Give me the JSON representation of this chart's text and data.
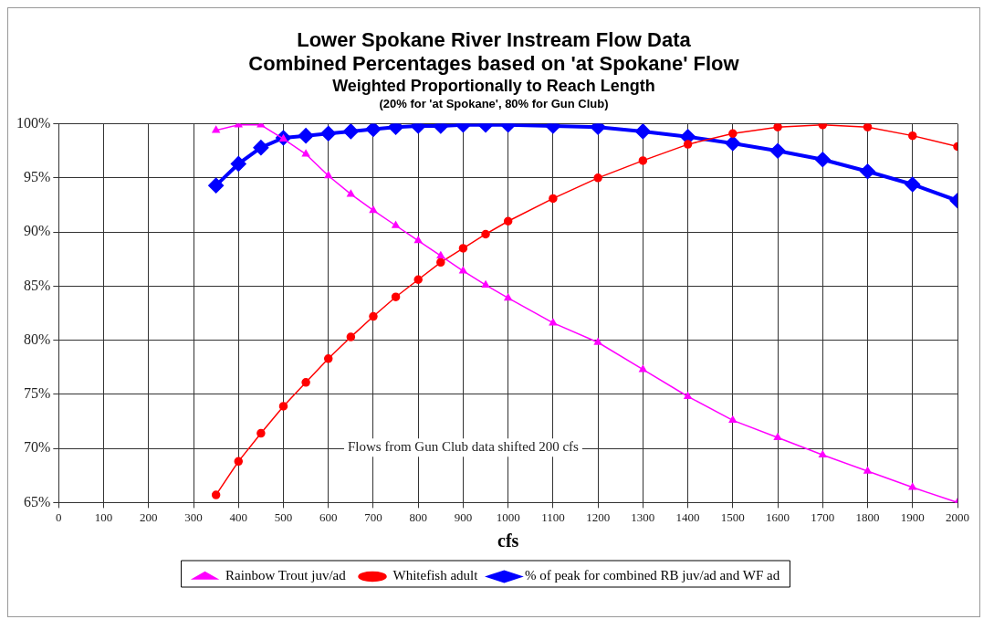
{
  "chart_data": {
    "type": "line",
    "title": "Lower Spokane River Instream Flow Data",
    "subtitle": "Combined Percentages based on 'at Spokane' Flow",
    "annotations": [
      "Weighted Proportionally to Reach Length",
      "(20% for 'at Spokane', 80% for Gun Club)",
      "Flows from Gun Club data shifted 200 cfs"
    ],
    "xlabel": "cfs",
    "x": [
      350,
      400,
      450,
      500,
      550,
      600,
      650,
      700,
      750,
      800,
      850,
      900,
      950,
      1000,
      1100,
      1200,
      1300,
      1400,
      1500,
      1600,
      1700,
      1800,
      1900,
      2000
    ],
    "series": [
      {
        "name": "Rainbow Trout juv/ad",
        "color": "#ff00ff",
        "marker": "triangle",
        "values": [
          99.4,
          99.9,
          99.9,
          98.6,
          97.2,
          95.2,
          93.5,
          92.0,
          90.6,
          89.2,
          87.8,
          86.4,
          85.1,
          83.9,
          81.6,
          79.8,
          77.3,
          74.8,
          72.6,
          71.0,
          69.4,
          67.9,
          66.4,
          65.0
        ]
      },
      {
        "name": "Whitefish adult",
        "color": "#ff0000",
        "marker": "circle",
        "values": [
          65.7,
          68.8,
          71.4,
          73.9,
          76.1,
          78.3,
          80.3,
          82.2,
          84.0,
          85.6,
          87.2,
          88.5,
          89.8,
          91.0,
          93.1,
          95.0,
          96.6,
          98.1,
          99.1,
          99.7,
          99.9,
          99.7,
          98.9,
          97.9
        ]
      },
      {
        "name": "% of peak for combined RB juv/ad and WF ad",
        "color": "#0000ff",
        "marker": "diamond",
        "values": [
          94.3,
          96.3,
          97.8,
          98.7,
          98.9,
          99.1,
          99.3,
          99.5,
          99.7,
          99.8,
          99.8,
          99.9,
          99.9,
          99.9,
          99.8,
          99.7,
          99.3,
          98.8,
          98.2,
          97.5,
          96.7,
          95.6,
          94.4,
          92.9
        ]
      }
    ],
    "xlim": [
      0,
      2000
    ],
    "xticks": [
      0,
      100,
      200,
      300,
      400,
      500,
      600,
      700,
      800,
      900,
      1000,
      1100,
      1200,
      1300,
      1400,
      1500,
      1600,
      1700,
      1800,
      1900,
      2000
    ],
    "ylim": [
      65,
      100
    ],
    "yticks": [
      {
        "value": 65,
        "label": "65%"
      },
      {
        "value": 70,
        "label": "70%"
      },
      {
        "value": 75,
        "label": "75%"
      },
      {
        "value": 80,
        "label": "80%"
      },
      {
        "value": 85,
        "label": "85%"
      },
      {
        "value": 90,
        "label": "90%"
      },
      {
        "value": 95,
        "label": "95%"
      },
      {
        "value": 100,
        "label": "100%"
      }
    ],
    "grid": true,
    "legend": "bottom",
    "line_style": "solid"
  }
}
